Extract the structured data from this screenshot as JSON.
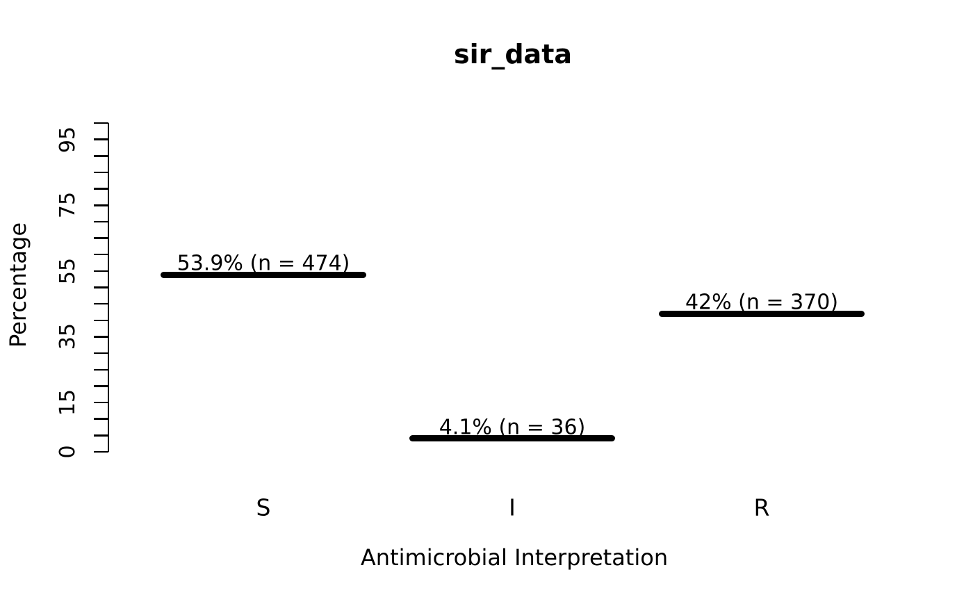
{
  "chart_data": {
    "type": "bar",
    "style": "R base plot — thick horizontal black line segments marking each percentage",
    "title": "sir_data",
    "xlabel": "Antimicrobial Interpretation",
    "ylabel": "Percentage",
    "categories": [
      "S",
      "I",
      "R"
    ],
    "values": [
      53.9,
      4.1,
      42
    ],
    "counts": [
      474,
      36,
      370
    ],
    "bar_labels": [
      "53.9% (n = 474)",
      "4.1% (n = 36)",
      "42% (n = 370)"
    ],
    "ylim": [
      0,
      100
    ],
    "y_tick_step": 5,
    "y_labeled_ticks": [
      0,
      15,
      35,
      55,
      75,
      95
    ],
    "grid": false,
    "legend_position": "none",
    "colors": {
      "bar": "#000000",
      "text": "#000000",
      "background": "#ffffff"
    }
  }
}
